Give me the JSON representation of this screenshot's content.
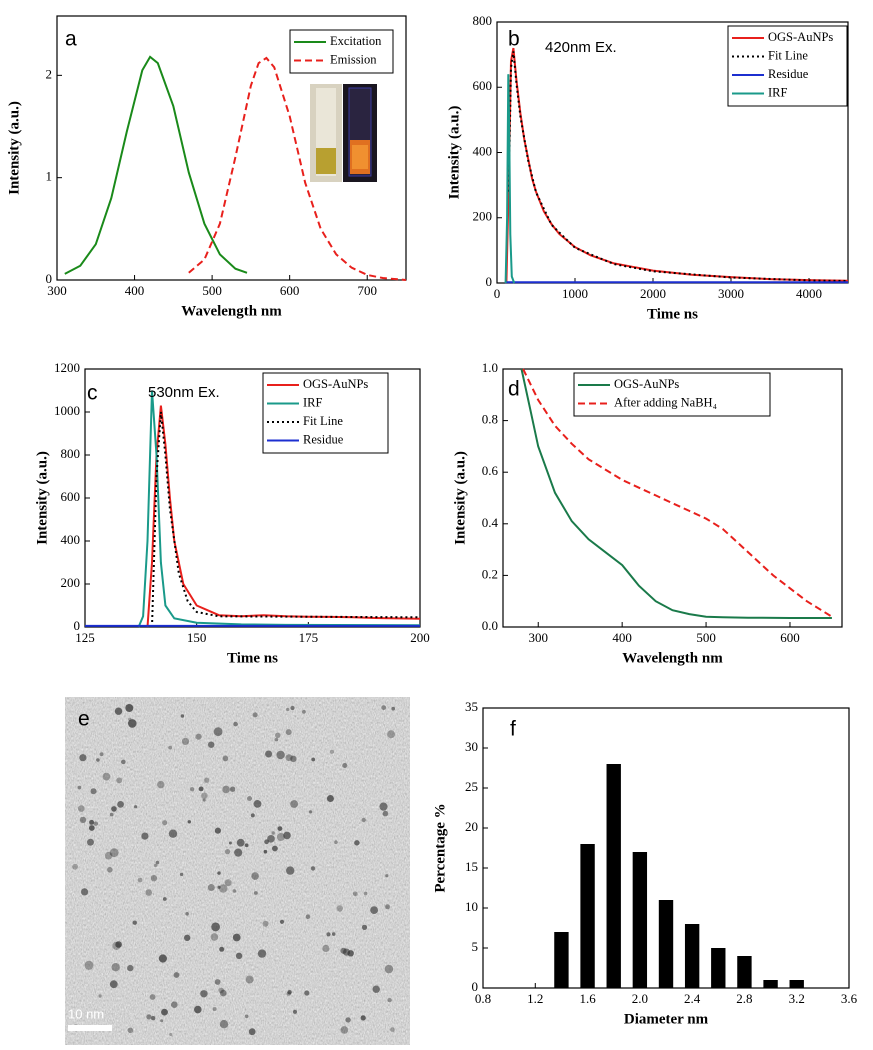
{
  "chart_data": [
    {
      "type": "line",
      "label": "a",
      "xlabel": "Wavelength nm",
      "ylabel": "Intensity (a.u.)",
      "xlim": [
        300,
        750
      ],
      "ylim": [
        0,
        2.58
      ],
      "xticks": [
        300,
        400,
        500,
        600,
        700
      ],
      "yticks": [
        0,
        1,
        2
      ],
      "legend": "top-right",
      "series": [
        {
          "name": "Excitation",
          "color": "#1a8a1a",
          "style": "solid",
          "x": [
            310,
            330,
            350,
            370,
            390,
            410,
            420,
            430,
            450,
            470,
            490,
            510,
            530,
            545
          ],
          "values": [
            0.06,
            0.14,
            0.35,
            0.8,
            1.45,
            2.05,
            2.18,
            2.12,
            1.7,
            1.05,
            0.55,
            0.25,
            0.11,
            0.07
          ]
        },
        {
          "name": "Emission",
          "color": "#e8201c",
          "style": "dashed",
          "x": [
            470,
            490,
            510,
            530,
            550,
            560,
            570,
            580,
            600,
            620,
            640,
            660,
            680,
            700,
            720,
            750
          ],
          "values": [
            0.07,
            0.2,
            0.55,
            1.2,
            1.9,
            2.12,
            2.17,
            2.08,
            1.6,
            0.95,
            0.5,
            0.25,
            0.12,
            0.05,
            0.02,
            0.0
          ]
        }
      ]
    },
    {
      "type": "line",
      "label": "b",
      "annotation": "420nm Ex.",
      "xlabel": "Time ns",
      "ylabel": "Intensity (a.u.)",
      "xlim": [
        0,
        4500
      ],
      "ylim": [
        0,
        800
      ],
      "xticks": [
        0,
        1000,
        2000,
        3000,
        4000
      ],
      "yticks": [
        0,
        200,
        400,
        600,
        800
      ],
      "legend": "top-right",
      "series": [
        {
          "name": "OGS-AuNPs",
          "color": "#e8201c",
          "style": "solid",
          "x": [
            120,
            150,
            180,
            210,
            250,
            300,
            350,
            400,
            450,
            500,
            600,
            700,
            800,
            1000,
            1200,
            1500,
            2000,
            2500,
            3000,
            3500,
            4000,
            4500
          ],
          "values": [
            0,
            300,
            680,
            720,
            620,
            520,
            440,
            380,
            320,
            280,
            220,
            180,
            150,
            110,
            85,
            60,
            38,
            25,
            18,
            12,
            9,
            7
          ]
        },
        {
          "name": "Fit Line",
          "color": "#000000",
          "style": "dotted",
          "x": [
            150,
            180,
            210,
            250,
            300,
            400,
            500,
            700,
            1000,
            1500,
            2000,
            3000,
            4000,
            4500
          ],
          "values": [
            280,
            660,
            710,
            610,
            510,
            375,
            278,
            178,
            108,
            58,
            36,
            17,
            8,
            6
          ]
        },
        {
          "name": "Residue",
          "color": "#1c2fd0",
          "style": "solid",
          "x": [
            100,
            4500
          ],
          "values": [
            2,
            2
          ]
        },
        {
          "name": "IRF",
          "color": "#1a9a8a",
          "style": "solid",
          "x": [
            110,
            130,
            145,
            155,
            170,
            190,
            220
          ],
          "values": [
            0,
            200,
            640,
            500,
            150,
            20,
            0
          ]
        }
      ]
    },
    {
      "type": "line",
      "label": "c",
      "annotation": "530nm Ex.",
      "xlabel": "Time ns",
      "ylabel": "Intensity (a.u.)",
      "xlim": [
        125,
        200
      ],
      "ylim": [
        0,
        1200
      ],
      "xticks": [
        125,
        150,
        175,
        200
      ],
      "yticks": [
        0,
        200,
        400,
        600,
        800,
        1000,
        1200
      ],
      "legend": "top-right",
      "series": [
        {
          "name": "OGS-AuNPs",
          "color": "#e8201c",
          "style": "solid",
          "x": [
            139,
            140,
            141,
            142,
            143,
            144,
            145,
            147,
            150,
            155,
            160,
            165,
            170,
            175,
            180,
            185,
            190,
            195,
            200
          ],
          "values": [
            0,
            300,
            800,
            1030,
            850,
            600,
            400,
            200,
            100,
            55,
            50,
            55,
            50,
            48,
            47,
            45,
            42,
            40,
            38
          ]
        },
        {
          "name": "IRF",
          "color": "#1a9a8a",
          "style": "solid",
          "x": [
            137,
            138,
            139,
            140,
            141,
            142,
            143,
            145,
            150,
            160,
            170,
            200
          ],
          "values": [
            0,
            50,
            400,
            1100,
            800,
            300,
            100,
            40,
            20,
            12,
            10,
            8
          ]
        },
        {
          "name": "Fit Line",
          "color": "#000000",
          "style": "dotted",
          "x": [
            140,
            141,
            142,
            143,
            144,
            146,
            148,
            150,
            155,
            200
          ],
          "values": [
            0,
            700,
            1000,
            800,
            550,
            250,
            120,
            70,
            50,
            45
          ]
        },
        {
          "name": "Residue",
          "color": "#1c2fd0",
          "style": "solid",
          "x": [
            125,
            200
          ],
          "values": [
            5,
            5
          ]
        }
      ]
    },
    {
      "type": "line",
      "label": "d",
      "xlabel": "Wavelength nm",
      "ylabel": "Intensity (a.u.)",
      "xlim": [
        258,
        662
      ],
      "ylim": [
        0,
        1
      ],
      "xticks": [
        300,
        400,
        500,
        600
      ],
      "yticks": [
        {
          "value": 0,
          "label": "0.0"
        },
        0.2,
        0.4,
        0.6,
        0.8,
        {
          "value": 1,
          "label": "1.0"
        }
      ],
      "legend": "top-left",
      "series": [
        {
          "name": "OGS-AuNPs",
          "color": "#1a7a4a",
          "style": "solid",
          "x": [
            280,
            290,
            300,
            320,
            340,
            360,
            380,
            400,
            420,
            440,
            460,
            480,
            500,
            520,
            550,
            600,
            650
          ],
          "values": [
            1.0,
            0.85,
            0.7,
            0.52,
            0.41,
            0.34,
            0.29,
            0.24,
            0.16,
            0.1,
            0.065,
            0.05,
            0.04,
            0.038,
            0.036,
            0.035,
            0.035
          ]
        },
        {
          "name": "After adding NaBH₄",
          "color": "#e8201c",
          "style": "dashed",
          "x": [
            282,
            300,
            320,
            340,
            360,
            380,
            400,
            420,
            440,
            460,
            480,
            500,
            520,
            540,
            560,
            580,
            600,
            620,
            650
          ],
          "values": [
            1.0,
            0.88,
            0.78,
            0.71,
            0.65,
            0.61,
            0.57,
            0.54,
            0.51,
            0.48,
            0.45,
            0.42,
            0.38,
            0.32,
            0.26,
            0.2,
            0.15,
            0.1,
            0.04
          ]
        }
      ]
    },
    {
      "type": "image",
      "label": "e",
      "scale_bar": "10 nm"
    },
    {
      "type": "bar",
      "label": "f",
      "xlabel": "Diameter nm",
      "ylabel": "Percentage %",
      "color": "#000000",
      "xlim": [
        0.8,
        3.6
      ],
      "ylim": [
        0,
        35
      ],
      "xticks": [
        0.8,
        1.2,
        1.6,
        {
          "value": 2,
          "label": "2.0"
        },
        2.4,
        2.8,
        3.2,
        3.6
      ],
      "yticks": [
        0,
        5,
        10,
        15,
        20,
        25,
        30,
        35
      ],
      "x": [
        1.4,
        1.6,
        1.8,
        2.0,
        2.2,
        2.4,
        2.6,
        2.8,
        3.0,
        3.2
      ],
      "values": [
        7,
        18,
        28,
        17,
        11,
        8,
        5,
        4,
        1,
        1
      ]
    }
  ]
}
